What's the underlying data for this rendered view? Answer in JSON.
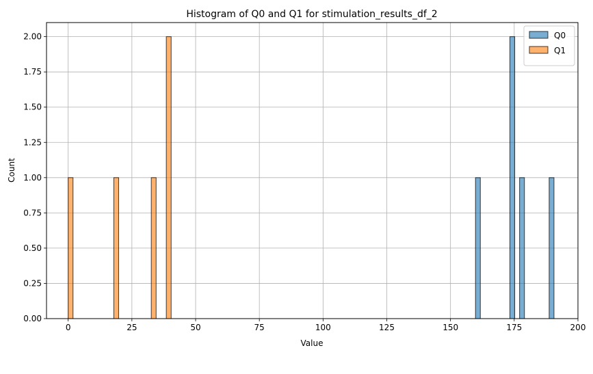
{
  "chart_data": {
    "type": "bar",
    "title": "Histogram of Q0 and Q1 for stimulation_results_df_2",
    "xlabel": "Value",
    "ylabel": "Count",
    "xlim": [
      -8.5,
      200
    ],
    "ylim": [
      0,
      2.1
    ],
    "xticks": [
      0,
      25,
      50,
      75,
      100,
      125,
      150,
      175,
      200
    ],
    "yticks": [
      0,
      0.25,
      0.5,
      0.75,
      1.0,
      1.25,
      1.5,
      1.75,
      2.0
    ],
    "xtick_labels": [
      "0",
      "25",
      "50",
      "75",
      "100",
      "125",
      "150",
      "175",
      "200"
    ],
    "ytick_labels": [
      "0.00",
      "0.25",
      "0.50",
      "0.75",
      "1.00",
      "1.25",
      "1.50",
      "1.75",
      "2.00"
    ],
    "grid": true,
    "legend_position": "top-right",
    "series": [
      {
        "name": "Q0",
        "color": "#1f77b4",
        "bins": [
          {
            "start": 159.8,
            "end": 161.7,
            "count": 1
          },
          {
            "start": 173.3,
            "end": 175.2,
            "count": 2
          },
          {
            "start": 177.1,
            "end": 179.0,
            "count": 1
          },
          {
            "start": 188.7,
            "end": 190.6,
            "count": 1
          }
        ]
      },
      {
        "name": "Q1",
        "color": "#ff7f0e",
        "bins": [
          {
            "start": 0.0,
            "end": 1.9,
            "count": 1
          },
          {
            "start": 17.9,
            "end": 19.8,
            "count": 1
          },
          {
            "start": 32.6,
            "end": 34.5,
            "count": 1
          },
          {
            "start": 38.5,
            "end": 40.4,
            "count": 2
          }
        ]
      }
    ]
  }
}
